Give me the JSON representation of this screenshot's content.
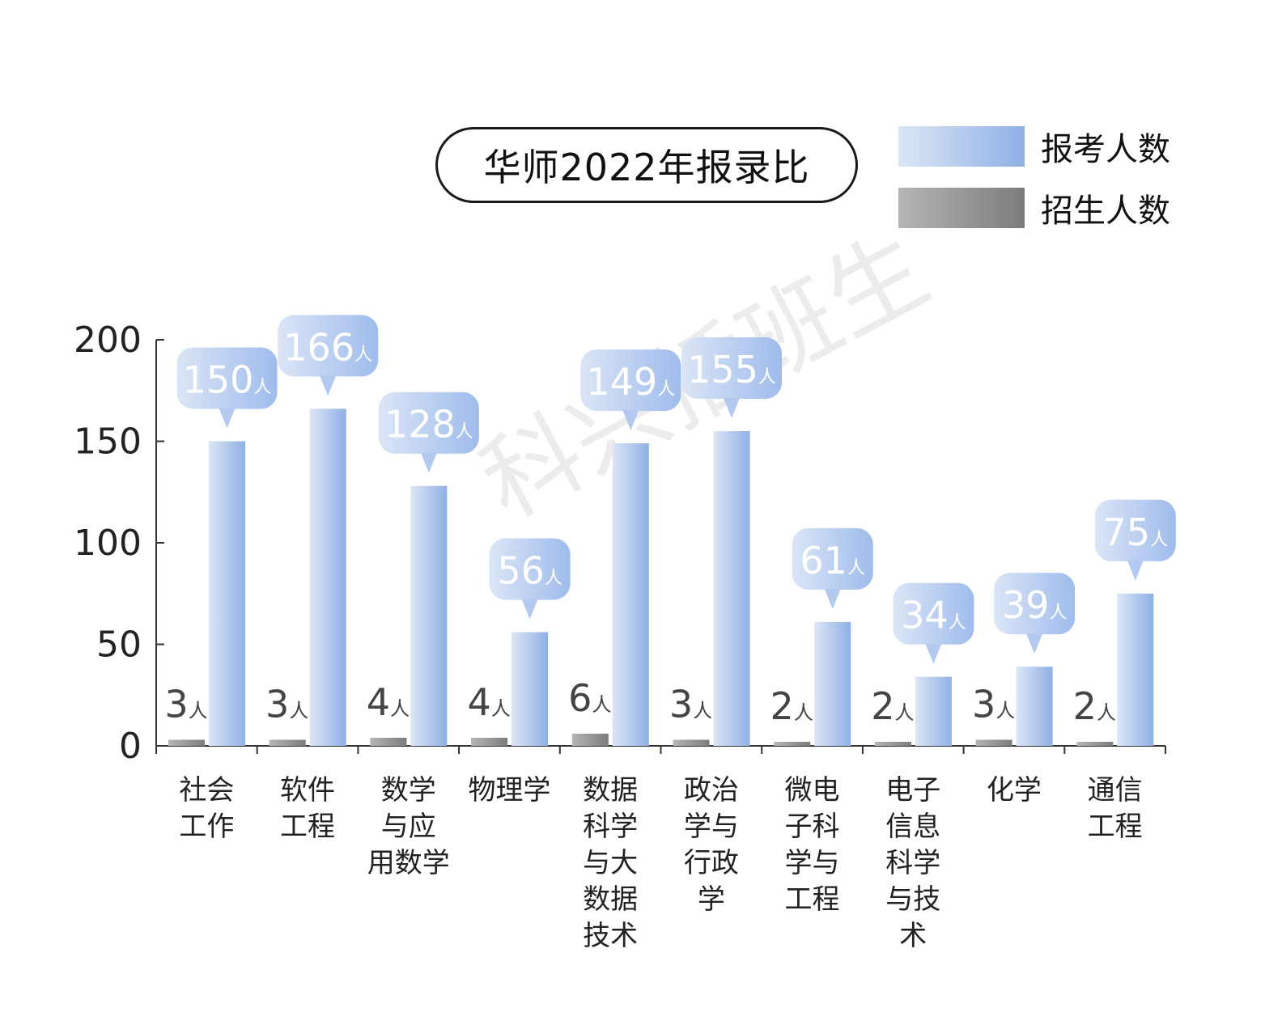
{
  "chart_data": {
    "type": "bar",
    "title": "华师2022年报录比",
    "categories": [
      "社会工作",
      "软件工程",
      "数学与应用数学",
      "物理学",
      "数据科学与大数据技术",
      "政治学与行政学",
      "微电子科学与工程",
      "电子信息科学与技术",
      "化学",
      "通信工程"
    ],
    "category_display": [
      "社会\n工作",
      "软件\n工程",
      "数学\n与应\n用数学",
      "物理学",
      "数据\n科学\n与大\n数据\n技术",
      "政治\n学与\n行政\n学",
      "微电\n子科\n学与\n工程",
      "电子\n信息\n科学\n与技\n术",
      "化学",
      "通信\n工程"
    ],
    "series": [
      {
        "name": "招生人数",
        "values": [
          3,
          3,
          4,
          4,
          6,
          3,
          2,
          2,
          3,
          2
        ]
      },
      {
        "name": "报考人数",
        "values": [
          150,
          166,
          128,
          56,
          149,
          155,
          61,
          34,
          39,
          75
        ]
      }
    ],
    "unit": "人",
    "ylim": [
      0,
      200
    ],
    "yticks": [
      "0",
      "50",
      "100",
      "150",
      "200"
    ],
    "legend_position": "top-right",
    "colors": {
      "applicants_light": "#dce6f5",
      "applicants_dark": "#8fb0e6",
      "enrolled_light": "#b5b5b5",
      "enrolled_dark": "#7c7c7c",
      "bubble": "#a9c3ee"
    }
  },
  "legend": [
    {
      "label": "报考人数",
      "swatch": "applicants"
    },
    {
      "label": "招生人数",
      "swatch": "enrolled"
    }
  ],
  "watermark": "科兴插班生"
}
